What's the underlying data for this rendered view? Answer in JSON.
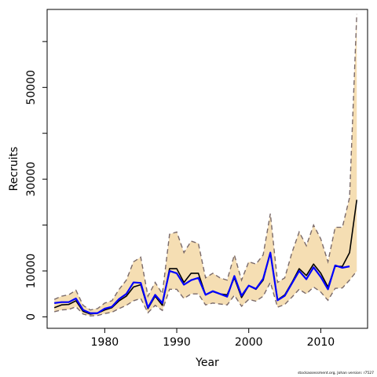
{
  "chart_data": {
    "type": "line",
    "title": "",
    "xlabel": "Year",
    "ylabel": "Recruits",
    "xlim": [
      1972,
      2016.5
    ],
    "ylim": [
      -2500,
      67000
    ],
    "x_ticks": [
      1980,
      1990,
      2000,
      2010
    ],
    "y_ticks": [
      0,
      10000,
      30000,
      50000
    ],
    "y_minor_ticks": [
      20000,
      40000,
      60000
    ],
    "grid": false,
    "band_color": "#f5deb3",
    "bound_color": "#7a6a6a",
    "series": [
      {
        "role": "estimate",
        "color": "#000000",
        "x": [
          1973,
          1974,
          1975,
          1976,
          1977,
          1978,
          1979,
          1980,
          1981,
          1982,
          1983,
          1984,
          1985,
          1986,
          1987,
          1988,
          1989,
          1990,
          1991,
          1992,
          1993,
          1994,
          1995,
          1996,
          1997,
          1998,
          1999,
          2000,
          2001,
          2002,
          2003,
          2004,
          2005,
          2006,
          2007,
          2008,
          2009,
          2010,
          2011,
          2012,
          2013,
          2014,
          2015
        ],
        "y": [
          2000,
          2600,
          2700,
          3500,
          1200,
          600,
          800,
          1500,
          2000,
          3500,
          4500,
          6500,
          7000,
          1800,
          4500,
          2500,
          10500,
          10500,
          7500,
          9500,
          9500,
          4800,
          5500,
          5000,
          4800,
          8500,
          4200,
          6800,
          6000,
          8000,
          14000,
          3700,
          4800,
          7500,
          10500,
          9000,
          11500,
          9500,
          6500,
          11000,
          11000,
          14000,
          25500
        ]
      },
      {
        "role": "alternate",
        "color": "#0000ff",
        "x": [
          1973,
          1974,
          1975,
          1976,
          1977,
          1978,
          1979,
          1980,
          1981,
          1982,
          1983,
          1984,
          1985,
          1986,
          1987,
          1988,
          1989,
          1990,
          1991,
          1992,
          1993,
          1994,
          1995,
          1996,
          1997,
          1998,
          1999,
          2000,
          2001,
          2002,
          2003,
          2004,
          2005,
          2006,
          2007,
          2008,
          2009,
          2010,
          2011,
          2012,
          2013,
          2014
        ],
        "y": [
          3000,
          3200,
          3200,
          4000,
          1500,
          800,
          800,
          1800,
          2200,
          3900,
          5000,
          7500,
          7400,
          2000,
          4800,
          3000,
          10000,
          9500,
          7000,
          8000,
          8500,
          4800,
          5600,
          5000,
          4400,
          8900,
          4600,
          6800,
          6100,
          8300,
          14000,
          3600,
          4600,
          7300,
          10000,
          8200,
          10800,
          8700,
          6000,
          11200,
          10700,
          11000
        ]
      }
    ],
    "band": {
      "x": [
        1973,
        1974,
        1975,
        1976,
        1977,
        1978,
        1979,
        1980,
        1981,
        1982,
        1983,
        1984,
        1985,
        1986,
        1987,
        1988,
        1989,
        1990,
        1991,
        1992,
        1993,
        1994,
        1995,
        1996,
        1997,
        1998,
        1999,
        2000,
        2001,
        2002,
        2003,
        2004,
        2005,
        2006,
        2007,
        2008,
        2009,
        2010,
        2011,
        2012,
        2013,
        2014,
        2015
      ],
      "upper": [
        3800,
        4500,
        4800,
        5800,
        2500,
        1500,
        1800,
        3000,
        3500,
        6000,
        8000,
        12000,
        13000,
        4500,
        7500,
        5000,
        18000,
        18500,
        14000,
        16500,
        16000,
        8500,
        9500,
        8500,
        8000,
        13500,
        8000,
        12000,
        11500,
        13500,
        22500,
        7500,
        8500,
        14000,
        18500,
        15500,
        20000,
        17000,
        12000,
        19500,
        19500,
        26000,
        66000
      ],
      "lower": [
        1100,
        1500,
        1600,
        2200,
        600,
        200,
        300,
        700,
        1000,
        1800,
        2500,
        3500,
        4000,
        900,
        2500,
        1400,
        6000,
        6000,
        4000,
        5000,
        5000,
        2600,
        3000,
        2800,
        2600,
        4700,
        2300,
        3800,
        3400,
        4500,
        7500,
        2100,
        2700,
        4300,
        6000,
        5000,
        6500,
        5400,
        3600,
        6200,
        6300,
        8000,
        10000
      ]
    }
  },
  "footer": {
    "credit": "stockassessment.org, Johan  version: r7527"
  }
}
